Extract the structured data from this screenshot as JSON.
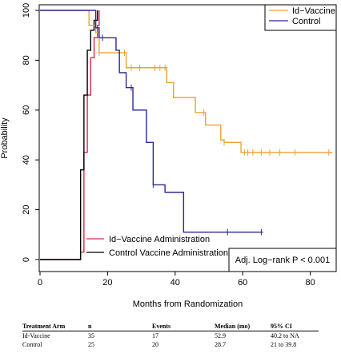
{
  "chart_data": {
    "type": "line",
    "title": "",
    "xlabel": "Months from Randomization",
    "ylabel": "Probability",
    "xlim": [
      0,
      90
    ],
    "ylim": [
      0,
      100
    ],
    "xticks": [
      0,
      20,
      40,
      60,
      80
    ],
    "yticks": [
      0,
      20,
      40,
      60,
      80,
      100
    ],
    "grid": false,
    "legend_placement": "top-right",
    "series": [
      {
        "name": "Id−Vaccine",
        "color": "#f0a030",
        "kind": "km_step",
        "x": [
          0,
          14.5,
          16.5,
          17.5,
          25.5,
          37.5,
          39.5,
          46,
          49,
          53.5,
          54.5,
          59.5,
          86.5
        ],
        "y": [
          100,
          94,
          91,
          83,
          77,
          71,
          65,
          59,
          54,
          48,
          47,
          43,
          43
        ],
        "censor_x": [
          17.5,
          25,
          27,
          29.5,
          34,
          35.5,
          37,
          48.5,
          54.5,
          60.5,
          61.5,
          63,
          65.5,
          68,
          71,
          75.5,
          85.5
        ]
      },
      {
        "name": "Control",
        "color": "#2a2a96",
        "kind": "km_step",
        "x": [
          0,
          16.5,
          17.5,
          22.5,
          23.5,
          25.5,
          27.5,
          31.5,
          33.5,
          37,
          42.5,
          66
        ],
        "y": [
          100,
          93,
          89,
          84,
          75,
          69,
          60,
          47,
          30,
          27,
          11,
          11
        ],
        "censor_x": [
          18.5,
          27,
          33.5,
          55.5,
          65.5
        ]
      },
      {
        "name": "Id−Vaccine Administration",
        "color": "#e0284a",
        "kind": "cumulative",
        "x": [
          0,
          10.5,
          12,
          13,
          14,
          15,
          16,
          17,
          17.5
        ],
        "y": [
          0,
          0,
          3,
          43,
          66,
          81,
          89,
          94,
          100
        ]
      },
      {
        "name": "Control Vaccine Administration",
        "color": "#000000",
        "kind": "cumulative",
        "x": [
          0,
          11,
          12,
          13,
          14,
          15,
          16,
          17
        ],
        "y": [
          0,
          0,
          36,
          66,
          84,
          92,
          96,
          100
        ]
      }
    ],
    "annotations": [
      "Adj. Log−rank P < 0.001"
    ]
  },
  "table": {
    "headers": [
      "Treatment Arm",
      "n",
      "Events",
      "Median (mo)",
      "95% CI"
    ],
    "rows": [
      [
        "Id-Vaccine",
        "35",
        "17",
        "52.9",
        "40.2 to NA"
      ],
      [
        "Control",
        "25",
        "20",
        "28.7",
        "21 to 39.8"
      ]
    ]
  }
}
